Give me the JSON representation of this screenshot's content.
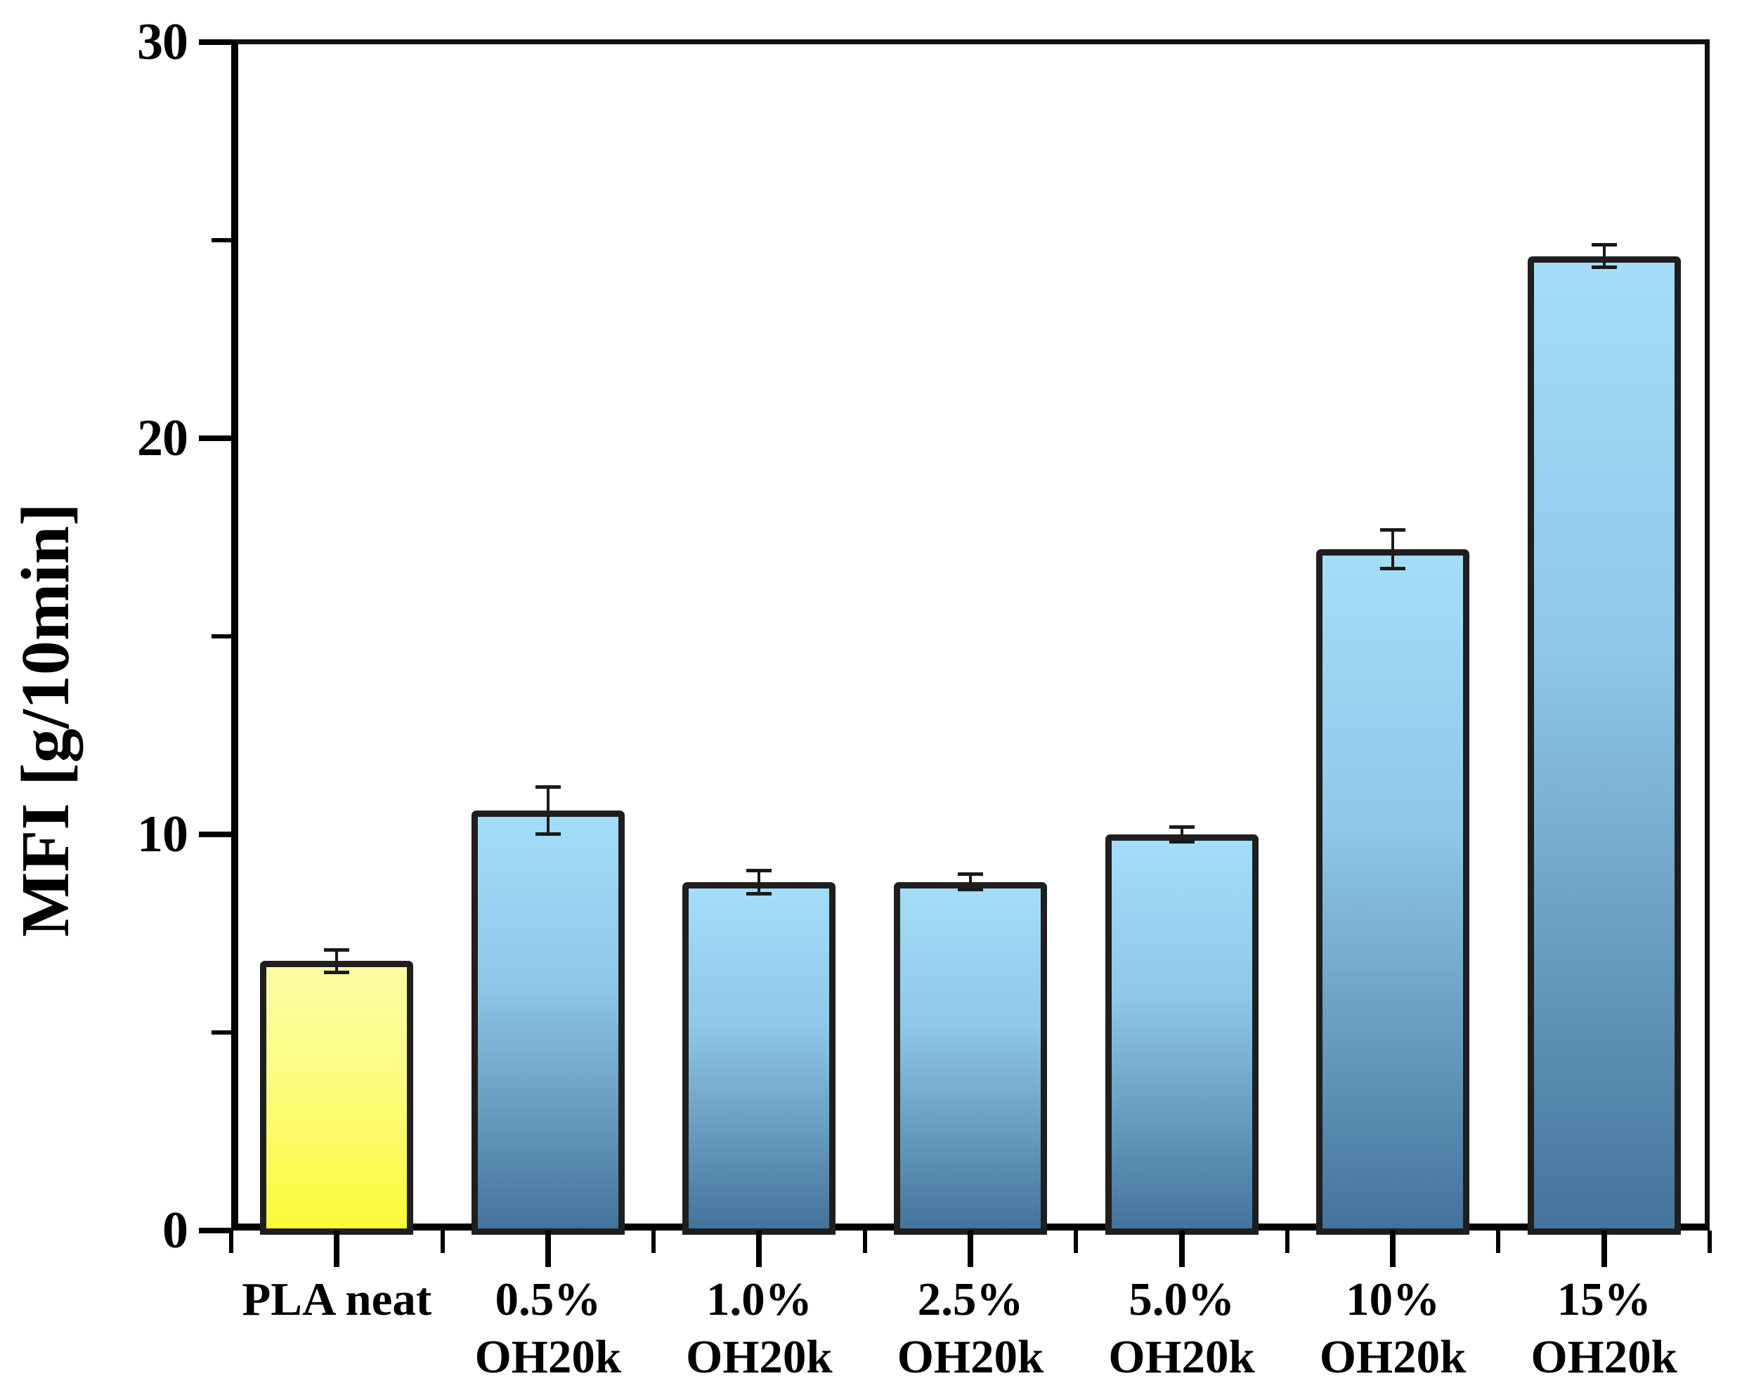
{
  "chart_data": {
    "type": "bar",
    "title": "",
    "xlabel": "",
    "ylabel": "MFI [g/10min]",
    "ylim": [
      0,
      30
    ],
    "y_major_ticks": [
      0,
      10,
      20,
      30
    ],
    "y_minor_ticks": [
      5,
      15,
      25
    ],
    "grid": false,
    "legend": "none",
    "categories": [
      "PLA neat",
      "0.5% OH20k",
      "1.0% OH20k",
      "2.5% OH20k",
      "5.0% OH20k",
      "10% OH20k",
      "15% OH20k"
    ],
    "series": [
      {
        "name": "MFI",
        "values": [
          6.8,
          10.6,
          8.8,
          8.8,
          10.0,
          17.2,
          24.6
        ],
        "errors": [
          0.3,
          0.6,
          0.3,
          0.2,
          0.2,
          0.5,
          0.3
        ]
      }
    ],
    "bars": [
      {
        "label_lines": [
          "PLA neat"
        ],
        "value": 6.8,
        "error": 0.3,
        "fill_top": "#fdfda2",
        "fill_mid": "#fcfc84",
        "fill_bottom": "#fafa38"
      },
      {
        "label_lines": [
          "0.5%",
          "OH20k"
        ],
        "value": 10.6,
        "error": 0.6,
        "fill_top": "#a4ddf9",
        "fill_mid": "#8fc8e8",
        "fill_bottom": "#44739b"
      },
      {
        "label_lines": [
          "1.0%",
          "OH20k"
        ],
        "value": 8.8,
        "error": 0.3,
        "fill_top": "#a4ddf9",
        "fill_mid": "#8fc8e8",
        "fill_bottom": "#44739b"
      },
      {
        "label_lines": [
          "2.5%",
          "OH20k"
        ],
        "value": 8.8,
        "error": 0.2,
        "fill_top": "#a4ddf9",
        "fill_mid": "#8fc8e8",
        "fill_bottom": "#44739b"
      },
      {
        "label_lines": [
          "5.0%",
          "OH20k"
        ],
        "value": 10.0,
        "error": 0.2,
        "fill_top": "#a4ddf9",
        "fill_mid": "#8fc8e8",
        "fill_bottom": "#44739b"
      },
      {
        "label_lines": [
          "10%",
          "OH20k"
        ],
        "value": 17.2,
        "error": 0.5,
        "fill_top": "#a4ddf9",
        "fill_mid": "#8fc8e8",
        "fill_bottom": "#44739b"
      },
      {
        "label_lines": [
          "15%",
          "OH20k"
        ],
        "value": 24.6,
        "error": 0.3,
        "fill_top": "#a4ddf9",
        "fill_mid": "#8fc8e8",
        "fill_bottom": "#44739b"
      }
    ]
  },
  "colors": {
    "background": "#ffffff",
    "axis": "#000000",
    "bar_stroke": "#1f1f1f",
    "error_bar": "#1a1a1a",
    "text": "#000000",
    "pla_yellow": "#fafa38",
    "blend_blue_light": "#a4ddf9",
    "blend_blue_dark": "#44739b"
  }
}
